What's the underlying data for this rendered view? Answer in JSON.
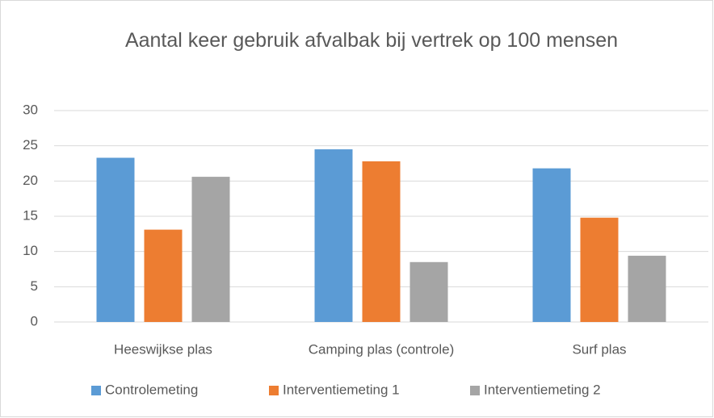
{
  "chart_data": {
    "type": "bar",
    "title": "Aantal keer gebruik afvalbak bij vertrek op 100 mensen",
    "categories": [
      "Heeswijkse plas",
      "Camping plas (controle)",
      "Surf plas"
    ],
    "series": [
      {
        "name": "Controlemeting",
        "color": "#5b9bd5",
        "values": [
          23.3,
          24.5,
          21.8
        ]
      },
      {
        "name": "Interventiemeting 1",
        "color": "#ed7d31",
        "values": [
          13.1,
          22.8,
          14.8
        ]
      },
      {
        "name": "Interventiemeting 2",
        "color": "#a5a5a5",
        "values": [
          20.6,
          8.5,
          9.4
        ]
      }
    ],
    "ylim": [
      0,
      30
    ],
    "yticks": [
      0,
      5,
      10,
      15,
      20,
      25,
      30
    ],
    "grid": true,
    "legend": "bottom"
  }
}
